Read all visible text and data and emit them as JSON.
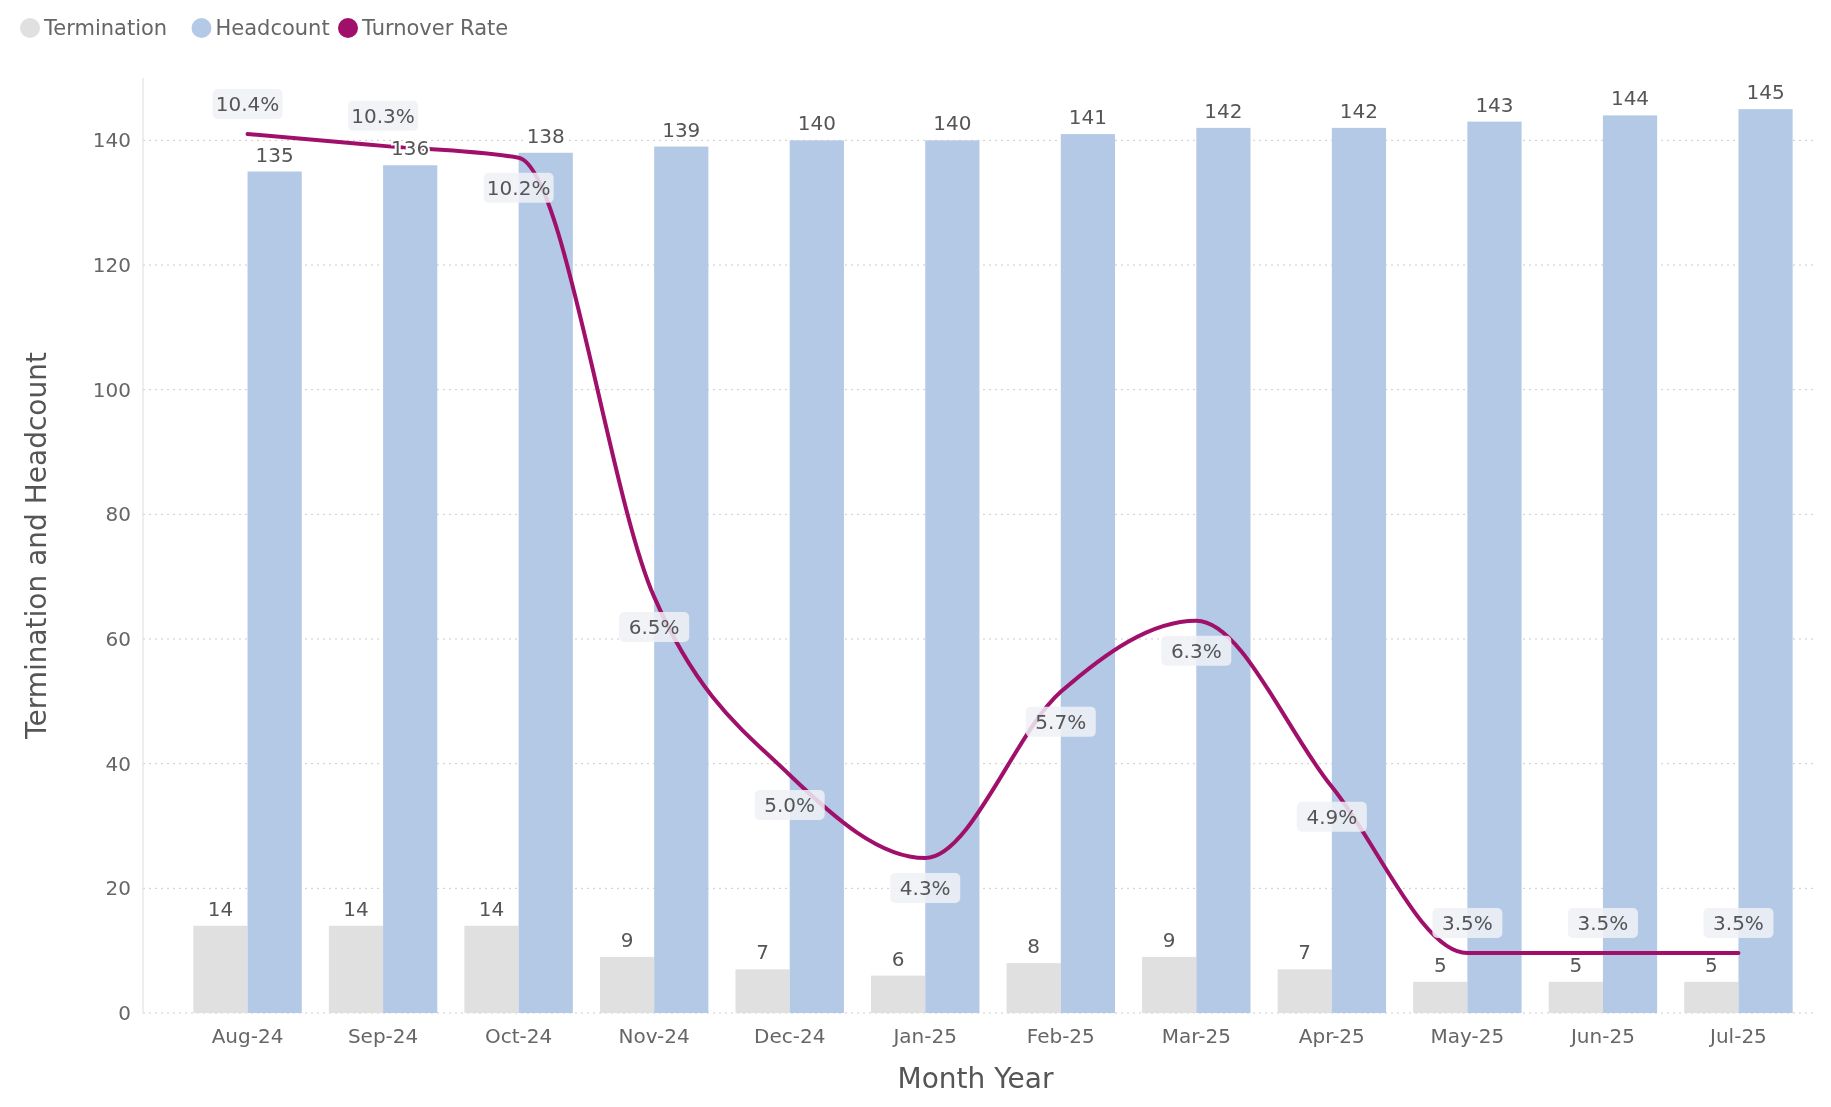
{
  "chart_data": {
    "type": "bar",
    "xlabel": "Month Year",
    "ylabel": "Termination and Headcount",
    "categories": [
      "Aug-24",
      "Sep-24",
      "Oct-24",
      "Nov-24",
      "Dec-24",
      "Jan-25",
      "Feb-25",
      "Mar-25",
      "Apr-25",
      "May-25",
      "Jun-25",
      "Jul-25"
    ],
    "series": [
      {
        "name": "Termination",
        "color": "#e0e0e0",
        "values": [
          14,
          14,
          14,
          9,
          7,
          6,
          8,
          9,
          7,
          5,
          5,
          5
        ]
      },
      {
        "name": "Headcount",
        "color": "#b4c9e6",
        "values": [
          135,
          136,
          138,
          139,
          140,
          140,
          141,
          142,
          142,
          143,
          144,
          145
        ]
      },
      {
        "name": "Turnover Rate",
        "type": "line",
        "axis": "y2",
        "color": "#a0106a",
        "value_labels": [
          "10.4%",
          "10.3%",
          "10.2%",
          "6.5%",
          "5.0%",
          "4.3%",
          "5.7%",
          "6.3%",
          "4.9%",
          "3.5%",
          "3.5%",
          "3.5%"
        ],
        "values": [
          10.4,
          10.3,
          10.2,
          6.5,
          5.0,
          4.3,
          5.7,
          6.3,
          4.9,
          3.5,
          3.5,
          3.5
        ]
      }
    ],
    "ylim": [
      0,
      150
    ],
    "yticks": [
      0,
      20,
      40,
      60,
      80,
      100,
      120,
      140
    ],
    "grid": "y",
    "legend": "top left",
    "data_labels": true
  }
}
